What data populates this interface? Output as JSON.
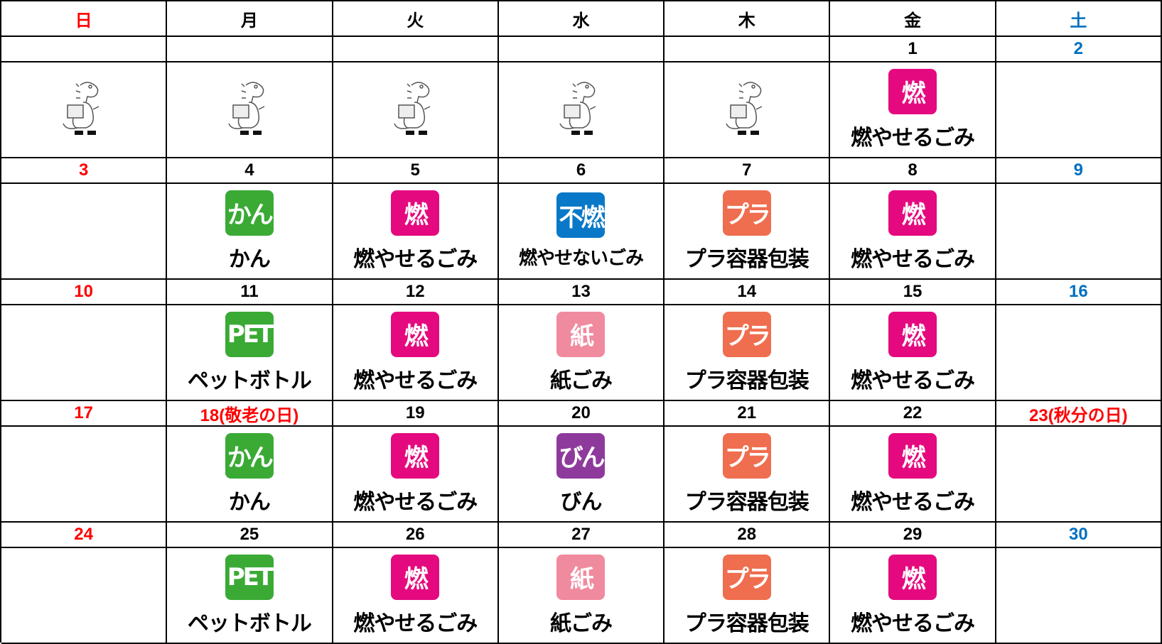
{
  "header": [
    "日",
    "月",
    "火",
    "水",
    "木",
    "金",
    "土"
  ],
  "header_colors": [
    "#ff0000",
    "#000000",
    "#000000",
    "#000000",
    "#000000",
    "#000000",
    "#0070c0"
  ],
  "weeks": [
    {
      "dates": [
        null,
        null,
        null,
        null,
        null,
        "1",
        "2"
      ],
      "date_colors": [
        "#ff0000",
        "#000000",
        "#000000",
        "#000000",
        "#000000",
        "#000000",
        "#0070c0"
      ],
      "items": [
        null,
        null,
        null,
        null,
        null,
        {
          "icon": "燃",
          "color": "#e5097f",
          "label": "燃やせるごみ"
        },
        null
      ]
    },
    {
      "dates": [
        "3",
        "4",
        "5",
        "6",
        "7",
        "8",
        "9"
      ],
      "date_colors": [
        "#ff0000",
        "#000000",
        "#000000",
        "#000000",
        "#000000",
        "#000000",
        "#0070c0"
      ],
      "items": [
        null,
        {
          "icon": "かん",
          "color": "#3aaa35",
          "label": "かん"
        },
        {
          "icon": "燃",
          "color": "#e5097f",
          "label": "燃やせるごみ"
        },
        {
          "icon": "不燃",
          "color": "#0a78c8",
          "label": "燃やせないごみ"
        },
        {
          "icon": "プラ",
          "color": "#ef6e4f",
          "label": "プラ容器包装"
        },
        {
          "icon": "燃",
          "color": "#e5097f",
          "label": "燃やせるごみ"
        },
        null
      ]
    },
    {
      "dates": [
        "10",
        "11",
        "12",
        "13",
        "14",
        "15",
        "16"
      ],
      "date_colors": [
        "#ff0000",
        "#000000",
        "#000000",
        "#000000",
        "#000000",
        "#000000",
        "#0070c0"
      ],
      "items": [
        null,
        {
          "icon": "PET",
          "color": "#3aaa35",
          "label": "ペットボトル"
        },
        {
          "icon": "燃",
          "color": "#e5097f",
          "label": "燃やせるごみ"
        },
        {
          "icon": "紙",
          "color": "#f08a9e",
          "label": "紙ごみ"
        },
        {
          "icon": "プラ",
          "color": "#ef6e4f",
          "label": "プラ容器包装"
        },
        {
          "icon": "燃",
          "color": "#e5097f",
          "label": "燃やせるごみ"
        },
        null
      ]
    },
    {
      "dates": [
        "17",
        "18(敬老の日)",
        "19",
        "20",
        "21",
        "22",
        "23(秋分の日)"
      ],
      "date_colors": [
        "#ff0000",
        "#ff0000",
        "#000000",
        "#000000",
        "#000000",
        "#000000",
        "#ff0000"
      ],
      "items": [
        null,
        {
          "icon": "かん",
          "color": "#3aaa35",
          "label": "かん"
        },
        {
          "icon": "燃",
          "color": "#e5097f",
          "label": "燃やせるごみ"
        },
        {
          "icon": "びん",
          "color": "#8e3a9c",
          "label": "びん"
        },
        {
          "icon": "プラ",
          "color": "#ef6e4f",
          "label": "プラ容器包装"
        },
        {
          "icon": "燃",
          "color": "#e5097f",
          "label": "燃やせるごみ"
        },
        null
      ]
    },
    {
      "dates": [
        "24",
        "25",
        "26",
        "27",
        "28",
        "29",
        "30"
      ],
      "date_colors": [
        "#ff0000",
        "#000000",
        "#000000",
        "#000000",
        "#000000",
        "#000000",
        "#0070c0"
      ],
      "items": [
        null,
        {
          "icon": "PET",
          "color": "#3aaa35",
          "label": "ペットボトル"
        },
        {
          "icon": "燃",
          "color": "#e5097f",
          "label": "燃やせるごみ"
        },
        {
          "icon": "紙",
          "color": "#f08a9e",
          "label": "紙ごみ"
        },
        {
          "icon": "プラ",
          "color": "#ef6e4f",
          "label": "プラ容器包装"
        },
        {
          "icon": "燃",
          "color": "#e5097f",
          "label": "燃やせるごみ"
        },
        null
      ]
    }
  ]
}
